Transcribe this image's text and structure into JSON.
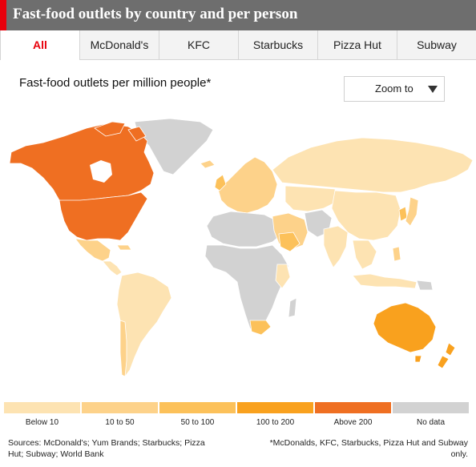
{
  "header": {
    "title": "Fast-food outlets by country and per person"
  },
  "tabs": [
    {
      "label": "All",
      "active": true
    },
    {
      "label": "McDonald's",
      "active": false
    },
    {
      "label": "KFC",
      "active": false
    },
    {
      "label": "Starbucks",
      "active": false
    },
    {
      "label": "Pizza Hut",
      "active": false
    },
    {
      "label": "Subway",
      "active": false
    }
  ],
  "subtitle": "Fast-food outlets per million people*",
  "zoom": {
    "label": "Zoom to",
    "icon": "triangle-down-icon"
  },
  "legend": [
    {
      "label": "Below 10",
      "color": "#fde3b2"
    },
    {
      "label": "10 to 50",
      "color": "#fdd28a"
    },
    {
      "label": "50 to 100",
      "color": "#fcc15a"
    },
    {
      "label": "100 to 200",
      "color": "#f9a11e"
    },
    {
      "label": "Above 200",
      "color": "#ef6f22"
    },
    {
      "label": "No data",
      "color": "#d2d2d2"
    }
  ],
  "footer": {
    "sources": "Sources: McDonald's; Yum Brands; Starbucks; Pizza Hut; Subway; World Bank",
    "note": "*McDonalds, KFC, Starbucks, Pizza Hut and Subway only."
  }
}
